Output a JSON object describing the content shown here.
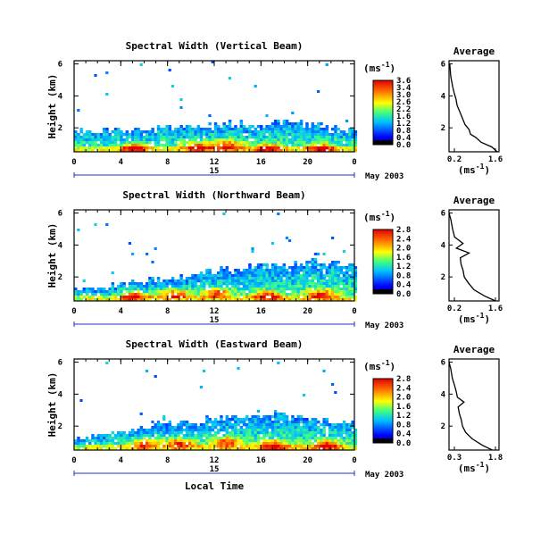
{
  "figure": {
    "xlabel": "Local Time",
    "date_label": "May 2003",
    "day_label": "15",
    "cbar_units": "(ms",
    "cbar_units_sup": "-1",
    "cbar_units_close": ")",
    "avg_xlabel": "(ms",
    "avg_xlabel_sup": "-1",
    "avg_xlabel_close": ")"
  },
  "chart_data": [
    {
      "type": "heatmap",
      "title": "Spectral Width (Vertical Beam)",
      "ylabel": "Height (km)",
      "x_ticks": [
        "0",
        "4",
        "8",
        "12",
        "16",
        "20",
        "0"
      ],
      "y_ticks": [
        "6",
        "4",
        "2"
      ],
      "xlim": [
        0,
        24
      ],
      "ylim": [
        0.5,
        6.2
      ],
      "colorbar": {
        "ticks": [
          "3.6",
          "3.4",
          "3.0",
          "2.6",
          "2.2",
          "1.6",
          "1.2",
          "0.8",
          "0.4",
          "0.0"
        ],
        "range": [
          0,
          3.6
        ]
      },
      "echo_top_km": [
        [
          0,
          1.9
        ],
        [
          2,
          1.95
        ],
        [
          4,
          2.0
        ],
        [
          6,
          2.1
        ],
        [
          8,
          2.15
        ],
        [
          10,
          2.25
        ],
        [
          12,
          2.3
        ],
        [
          14,
          2.35
        ],
        [
          16,
          2.35
        ],
        [
          18,
          2.5
        ],
        [
          20,
          2.3
        ],
        [
          22,
          2.2
        ],
        [
          24,
          2.1
        ]
      ],
      "hot_spots": [
        [
          5,
          0.8
        ],
        [
          10.5,
          0.9
        ],
        [
          13,
          1.0
        ],
        [
          16.5,
          0.8
        ],
        [
          21,
          0.8
        ]
      ],
      "average": {
        "title": "Average",
        "x_ticks": [
          "0.2",
          "1.6"
        ],
        "xlim": [
          0.2,
          1.6
        ],
        "y_ticks": [
          "6",
          "4",
          "2"
        ],
        "profile": [
          [
            1.55,
            0.5
          ],
          [
            1.4,
            0.8
          ],
          [
            1.1,
            1.1
          ],
          [
            0.95,
            1.4
          ],
          [
            0.8,
            1.6
          ],
          [
            0.75,
            1.9
          ],
          [
            0.65,
            2.2
          ],
          [
            0.55,
            2.6
          ],
          [
            0.5,
            3.0
          ],
          [
            0.45,
            3.4
          ],
          [
            0.4,
            3.8
          ],
          [
            0.35,
            4.2
          ],
          [
            0.3,
            4.6
          ],
          [
            0.25,
            5.2
          ],
          [
            0.22,
            6.0
          ]
        ]
      }
    },
    {
      "type": "heatmap",
      "title": "Spectral Width (Northward Beam)",
      "ylabel": "Height (km)",
      "x_ticks": [
        "0",
        "4",
        "8",
        "12",
        "16",
        "20",
        "0"
      ],
      "y_ticks": [
        "6",
        "4",
        "2"
      ],
      "xlim": [
        0,
        24
      ],
      "ylim": [
        0.5,
        6.2
      ],
      "colorbar": {
        "ticks": [
          "2.8",
          "2.4",
          "2.0",
          "1.6",
          "1.2",
          "0.8",
          "0.4",
          "0.0"
        ],
        "range": [
          0,
          2.8
        ]
      },
      "echo_top_km": [
        [
          0,
          1.2
        ],
        [
          2,
          1.4
        ],
        [
          4,
          1.6
        ],
        [
          6,
          1.8
        ],
        [
          8,
          2.0
        ],
        [
          10,
          2.2
        ],
        [
          12,
          2.5
        ],
        [
          14,
          2.6
        ],
        [
          16,
          2.8
        ],
        [
          18,
          2.8
        ],
        [
          20,
          3.1
        ],
        [
          22,
          3.0
        ],
        [
          24,
          2.8
        ]
      ],
      "hot_spots": [
        [
          5,
          0.9
        ],
        [
          8.5,
          1.0
        ],
        [
          12,
          1.1
        ],
        [
          16.5,
          0.9
        ],
        [
          21,
          1.0
        ]
      ],
      "average": {
        "title": "Average",
        "x_ticks": [
          "0.2",
          "1.6"
        ],
        "xlim": [
          0.2,
          1.6
        ],
        "y_ticks": [
          "6",
          "4",
          "2"
        ],
        "profile": [
          [
            1.5,
            0.5
          ],
          [
            1.2,
            0.8
          ],
          [
            0.9,
            1.2
          ],
          [
            0.75,
            1.6
          ],
          [
            0.65,
            2.0
          ],
          [
            0.6,
            2.4
          ],
          [
            0.55,
            2.8
          ],
          [
            0.5,
            3.2
          ],
          [
            0.75,
            3.5
          ],
          [
            0.4,
            3.8
          ],
          [
            0.6,
            4.1
          ],
          [
            0.35,
            4.5
          ],
          [
            0.3,
            5.0
          ],
          [
            0.25,
            5.6
          ],
          [
            0.2,
            6.0
          ]
        ]
      }
    },
    {
      "type": "heatmap",
      "title": "Spectral Width (Eastward Beam)",
      "ylabel": "Height (km)",
      "x_ticks": [
        "0",
        "4",
        "8",
        "12",
        "16",
        "20",
        "0"
      ],
      "y_ticks": [
        "6",
        "4",
        "2"
      ],
      "xlim": [
        0,
        24
      ],
      "ylim": [
        0.5,
        6.2
      ],
      "colorbar": {
        "ticks": [
          "2.8",
          "2.4",
          "2.0",
          "1.6",
          "1.2",
          "0.8",
          "0.4",
          "0.0"
        ],
        "range": [
          0,
          2.8
        ]
      },
      "echo_top_km": [
        [
          0,
          1.3
        ],
        [
          2,
          1.5
        ],
        [
          4,
          1.7
        ],
        [
          6,
          2.0
        ],
        [
          8,
          2.2
        ],
        [
          10,
          2.4
        ],
        [
          12,
          2.6
        ],
        [
          14,
          2.7
        ],
        [
          16,
          2.8
        ],
        [
          18,
          2.7
        ],
        [
          20,
          2.6
        ],
        [
          22,
          2.4
        ],
        [
          24,
          2.2
        ]
      ],
      "hot_spots": [
        [
          6,
          1.0
        ],
        [
          9,
          1.0
        ],
        [
          13,
          1.1
        ],
        [
          17,
          0.9
        ],
        [
          21.5,
          0.9
        ]
      ],
      "average": {
        "title": "Average",
        "x_ticks": [
          "0.3",
          "1.8"
        ],
        "xlim": [
          0.3,
          1.8
        ],
        "y_ticks": [
          "6",
          "4",
          "2"
        ],
        "profile": [
          [
            1.6,
            0.5
          ],
          [
            1.3,
            0.8
          ],
          [
            1.0,
            1.2
          ],
          [
            0.8,
            1.6
          ],
          [
            0.7,
            2.0
          ],
          [
            0.65,
            2.4
          ],
          [
            0.6,
            2.8
          ],
          [
            0.6,
            3.2
          ],
          [
            0.75,
            3.5
          ],
          [
            0.55,
            3.8
          ],
          [
            0.5,
            4.2
          ],
          [
            0.45,
            4.6
          ],
          [
            0.4,
            5.0
          ],
          [
            0.35,
            5.6
          ],
          [
            0.3,
            6.0
          ]
        ]
      }
    }
  ]
}
